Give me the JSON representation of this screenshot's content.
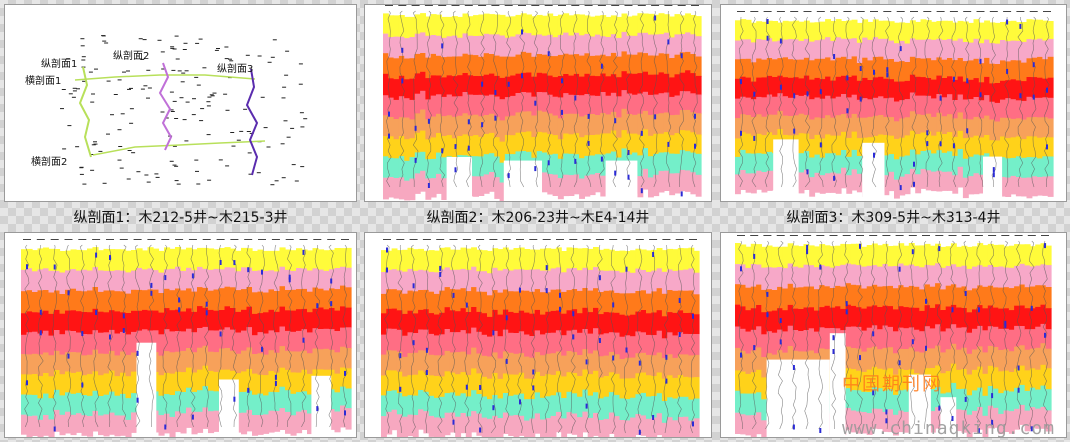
{
  "map": {
    "labels": {
      "long1": "纵剖面1",
      "long2": "纵剖面2",
      "long3": "纵剖面3",
      "cross1": "横剖面1",
      "cross2": "横剖面2"
    }
  },
  "captions": [
    "纵剖面1：木212-5井~木215-3井",
    "纵剖面2：木206-23井~木E4-14井",
    "纵剖面3：木309-5井~木313-4井"
  ],
  "watermark": {
    "cn": "中国期刊网",
    "url": "www.chinaqking.com"
  },
  "layer_colors": [
    "#fffb3a",
    "#f7a8c8",
    "#ff7a1a",
    "#ff1414",
    "#ff6e84",
    "#f7a15a",
    "#ffd21a",
    "#74efc9",
    "#f7a8c0"
  ],
  "panels": [
    {
      "name": "section-panel-1",
      "notches": [
        [
          50,
          58,
          0.73
        ]
      ]
    },
    {
      "name": "section-panel-2",
      "notches": [
        [
          20,
          28,
          0.8
        ],
        [
          38,
          50,
          0.82
        ],
        [
          70,
          80,
          0.82
        ]
      ]
    },
    {
      "name": "section-panel-3",
      "notches": [
        [
          12,
          20,
          0.7
        ],
        [
          40,
          47,
          0.72
        ],
        [
          78,
          84,
          0.8
        ]
      ]
    },
    {
      "name": "section-panel-4",
      "notches": [
        [
          35,
          41,
          0.52
        ],
        [
          60,
          66,
          0.72
        ],
        [
          88,
          94,
          0.7
        ]
      ]
    },
    {
      "name": "section-panel-5",
      "notches": []
    },
    {
      "name": "section-panel-6",
      "notches": [
        [
          10,
          30,
          0.62
        ],
        [
          30,
          35,
          0.48
        ],
        [
          55,
          62,
          0.7
        ],
        [
          65,
          70,
          0.82
        ]
      ]
    }
  ]
}
